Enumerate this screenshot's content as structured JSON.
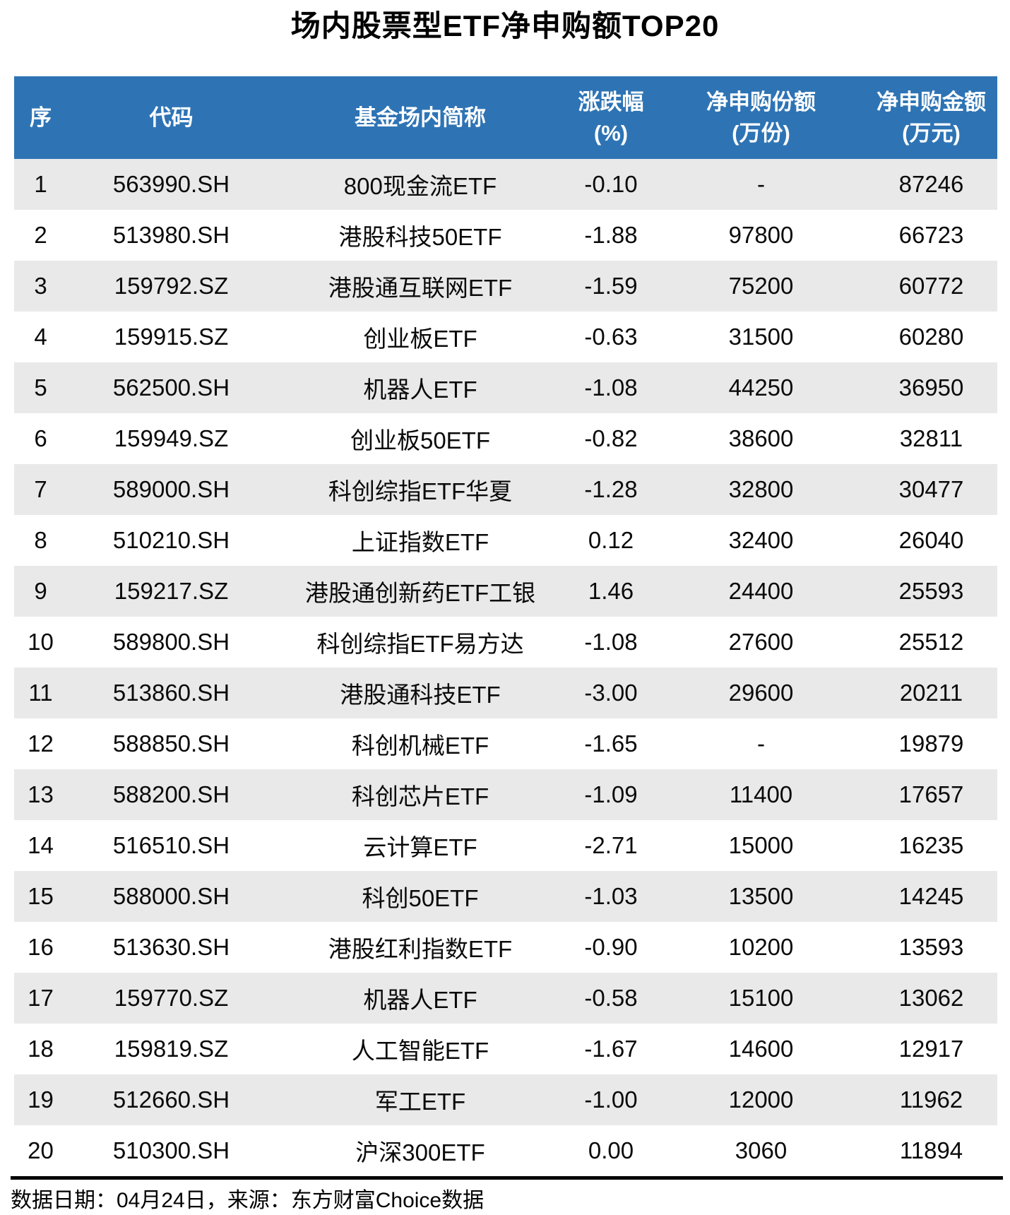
{
  "title": "场内股票型ETF净申购额TOP20",
  "colors": {
    "header_bg": "#2E74B5",
    "header_text": "#FFFFFF",
    "row_alt_bg": "#E9E9E9",
    "body_text": "#0A0A0A",
    "divider": "#000000"
  },
  "chart_data": {
    "type": "table",
    "title": "场内股票型ETF净申购额TOP20",
    "columns": [
      {
        "label": "序",
        "sub": ""
      },
      {
        "label": "代码",
        "sub": ""
      },
      {
        "label": "基金场内简称",
        "sub": ""
      },
      {
        "label": "涨跌幅",
        "sub": "(%)"
      },
      {
        "label": "净申购份额",
        "sub": "(万份)"
      },
      {
        "label": "净申购金额",
        "sub": "(万元)"
      }
    ],
    "rows": [
      [
        "1",
        "563990.SH",
        "800现金流ETF",
        "-0.10",
        "-",
        "87246"
      ],
      [
        "2",
        "513980.SH",
        "港股科技50ETF",
        "-1.88",
        "97800",
        "66723"
      ],
      [
        "3",
        "159792.SZ",
        "港股通互联网ETF",
        "-1.59",
        "75200",
        "60772"
      ],
      [
        "4",
        "159915.SZ",
        "创业板ETF",
        "-0.63",
        "31500",
        "60280"
      ],
      [
        "5",
        "562500.SH",
        "机器人ETF",
        "-1.08",
        "44250",
        "36950"
      ],
      [
        "6",
        "159949.SZ",
        "创业板50ETF",
        "-0.82",
        "38600",
        "32811"
      ],
      [
        "7",
        "589000.SH",
        "科创综指ETF华夏",
        "-1.28",
        "32800",
        "30477"
      ],
      [
        "8",
        "510210.SH",
        "上证指数ETF",
        "0.12",
        "32400",
        "26040"
      ],
      [
        "9",
        "159217.SZ",
        "港股通创新药ETF工银",
        "1.46",
        "24400",
        "25593"
      ],
      [
        "10",
        "589800.SH",
        "科创综指ETF易方达",
        "-1.08",
        "27600",
        "25512"
      ],
      [
        "11",
        "513860.SH",
        "港股通科技ETF",
        "-3.00",
        "29600",
        "20211"
      ],
      [
        "12",
        "588850.SH",
        "科创机械ETF",
        "-1.65",
        "-",
        "19879"
      ],
      [
        "13",
        "588200.SH",
        "科创芯片ETF",
        "-1.09",
        "11400",
        "17657"
      ],
      [
        "14",
        "516510.SH",
        "云计算ETF",
        "-2.71",
        "15000",
        "16235"
      ],
      [
        "15",
        "588000.SH",
        "科创50ETF",
        "-1.03",
        "13500",
        "14245"
      ],
      [
        "16",
        "513630.SH",
        "港股红利指数ETF",
        "-0.90",
        "10200",
        "13593"
      ],
      [
        "17",
        "159770.SZ",
        "机器人ETF",
        "-0.58",
        "15100",
        "13062"
      ],
      [
        "18",
        "159819.SZ",
        "人工智能ETF",
        "-1.67",
        "14600",
        "12917"
      ],
      [
        "19",
        "512660.SH",
        "军工ETF",
        "-1.00",
        "12000",
        "11962"
      ],
      [
        "20",
        "510300.SH",
        "沪深300ETF",
        "0.00",
        "3060",
        "11894"
      ]
    ]
  },
  "footer": {
    "note": "数据日期：04月24日，来源：东方财富Choice数据"
  }
}
